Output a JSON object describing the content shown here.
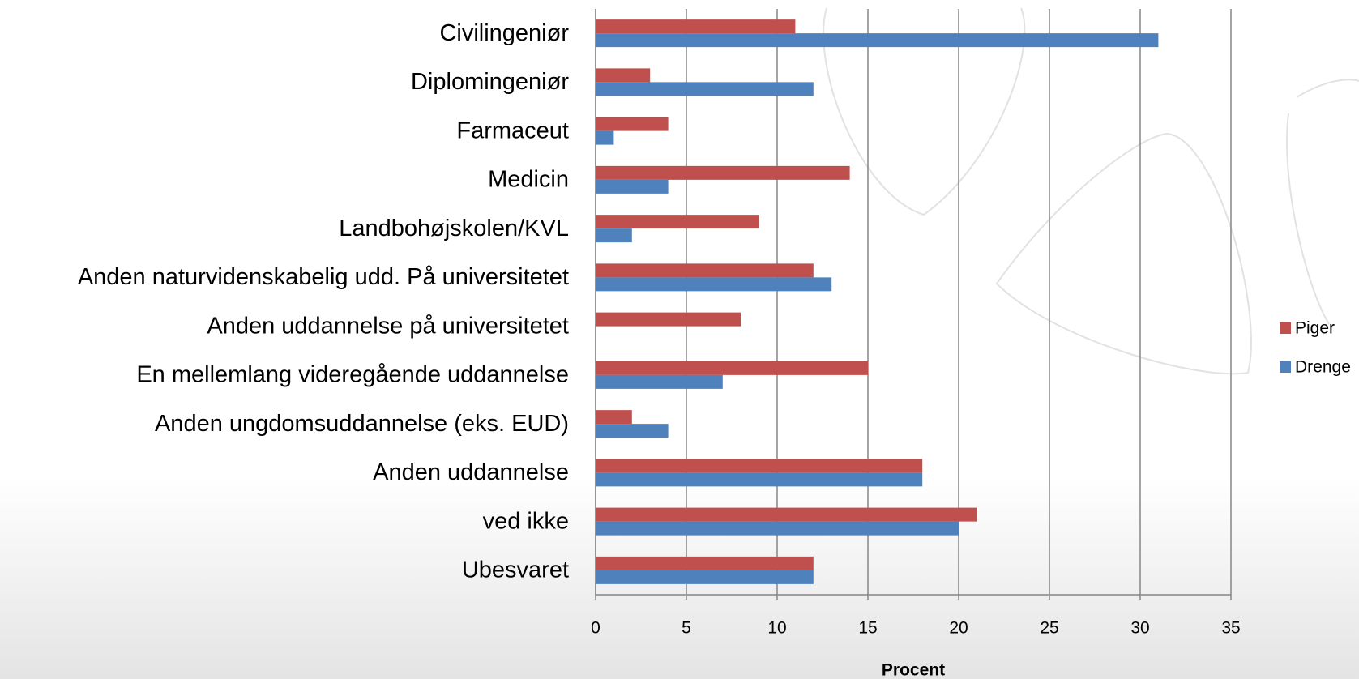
{
  "chart_data": {
    "type": "bar",
    "orientation": "horizontal",
    "x_label": "Procent",
    "categories": [
      "Civilingeniør",
      "Diplomingeniør",
      "Farmaceut",
      "Medicin",
      "Landbohøjskolen/KVL",
      "Anden naturvidenskabelig udd. På universitetet",
      "Anden uddannelse på universitetet",
      "En mellemlang videregående uddannelse",
      "Anden ungdomsuddannelse (eks. EUD)",
      "Anden uddannelse",
      "ved ikke",
      "Ubesvaret"
    ],
    "series": [
      {
        "name": "Piger",
        "color": "#c0504d",
        "values": [
          11,
          3,
          4,
          14,
          9,
          12,
          8,
          15,
          2,
          18,
          21,
          12
        ]
      },
      {
        "name": "Drenge",
        "color": "#4f81bd",
        "values": [
          31,
          12,
          1,
          4,
          2,
          13,
          0,
          7,
          4,
          18,
          20,
          12
        ]
      }
    ],
    "xlim": [
      0,
      35
    ],
    "xticks": [
      0,
      5,
      10,
      15,
      20,
      25,
      30,
      35
    ],
    "grid": true,
    "legend": "right"
  }
}
